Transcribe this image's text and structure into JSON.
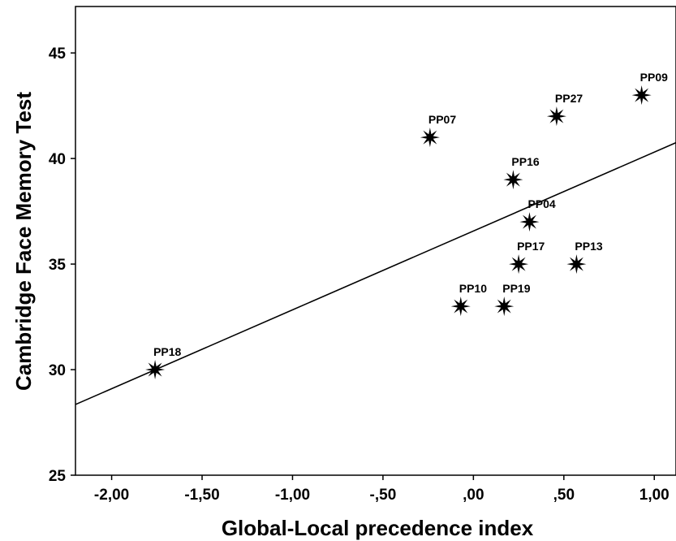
{
  "chart_data": {
    "type": "scatter",
    "xlabel": "Global-Local precedence index",
    "ylabel": "Cambridge Face Memory Test",
    "xlim": [
      -2.2,
      1.12
    ],
    "ylim": [
      25,
      47.2
    ],
    "x_ticks": [
      -2.0,
      -1.5,
      -1.0,
      -0.5,
      0.0,
      0.5,
      1.0
    ],
    "x_tick_labels": [
      "-2,00",
      "-1,50",
      "-1,00",
      "-,50",
      ",00",
      ",50",
      "1,00"
    ],
    "y_ticks": [
      25,
      30,
      35,
      40,
      45
    ],
    "y_tick_labels": [
      "25",
      "30",
      "35",
      "40",
      "45"
    ],
    "marker": "star",
    "points": [
      {
        "label": "PP18",
        "x": -1.76,
        "y": 30
      },
      {
        "label": "PP07",
        "x": -0.24,
        "y": 41
      },
      {
        "label": "PP10",
        "x": -0.07,
        "y": 33
      },
      {
        "label": "PP19",
        "x": 0.17,
        "y": 33
      },
      {
        "label": "PP17",
        "x": 0.25,
        "y": 35
      },
      {
        "label": "PP16",
        "x": 0.22,
        "y": 39
      },
      {
        "label": "PP04",
        "x": 0.31,
        "y": 37
      },
      {
        "label": "PP27",
        "x": 0.46,
        "y": 42
      },
      {
        "label": "PP13",
        "x": 0.57,
        "y": 35
      },
      {
        "label": "PP09",
        "x": 0.93,
        "y": 43
      }
    ],
    "fit_line": {
      "x": [
        -2.2,
        1.12
      ],
      "y": [
        28.35,
        40.75
      ]
    },
    "grid": false,
    "legend": "none"
  }
}
